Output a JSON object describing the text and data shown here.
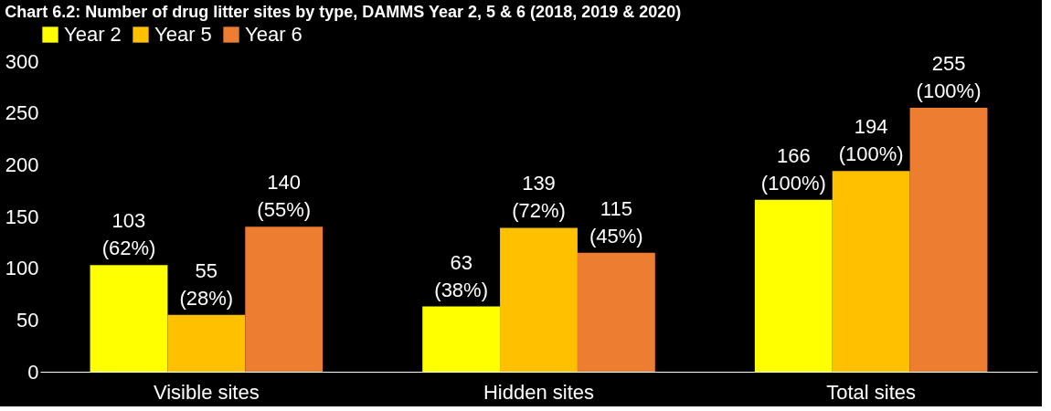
{
  "chart_data": {
    "type": "bar",
    "title": "Chart 6.2: Number of drug litter sites by type, DAMMS Year 2, 5 & 6 (2018, 2019 & 2020)",
    "categories": [
      "Visible sites",
      "Hidden sites",
      "Total sites"
    ],
    "series": [
      {
        "name": "Year 2",
        "color": "#ffff00",
        "values": [
          103,
          63,
          166
        ],
        "value_labels": [
          "103 (62%)",
          "63 (38%)",
          "166 (100%)"
        ]
      },
      {
        "name": "Year 5",
        "color": "#ffc000",
        "values": [
          55,
          139,
          194
        ],
        "value_labels": [
          "55 (28%)",
          "139 (72%)",
          "194 (100%)"
        ]
      },
      {
        "name": "Year 6",
        "color": "#ed7d31",
        "values": [
          140,
          115,
          255
        ],
        "value_labels": [
          "140 (55%)",
          "115 (45%)",
          "255 (100%)"
        ]
      }
    ],
    "ylim": [
      0,
      300
    ],
    "yticks": [
      0,
      50,
      100,
      150,
      200,
      250,
      300
    ],
    "grid": false,
    "legend": "top"
  }
}
